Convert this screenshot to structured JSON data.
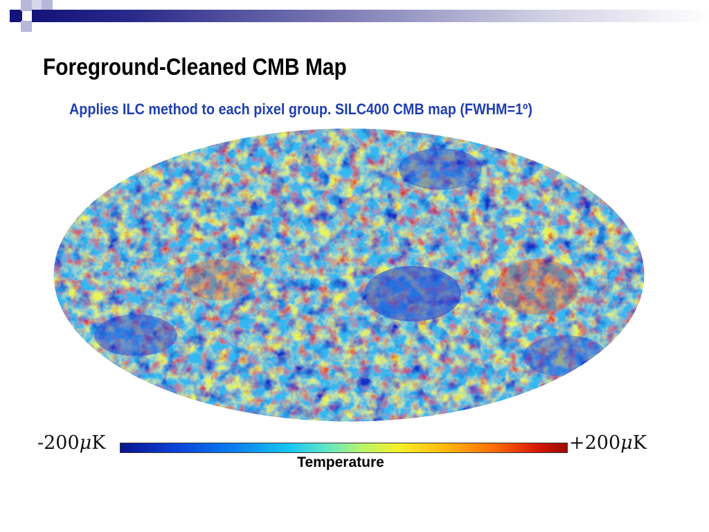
{
  "slide": {
    "title": "Foreground-Cleaned CMB Map",
    "subtitle": "Applies ILC method to each pixel group. SILC400 CMB map (FWHM=1º)"
  },
  "colorbar": {
    "min_label": "-200",
    "max_label": "+200",
    "unit_mu": "μ",
    "unit_k": "K",
    "caption": "Temperature",
    "min_value": -200,
    "max_value": 200,
    "colormap": "jet"
  },
  "colors": {
    "title": "#000000",
    "subtitle": "#1f3fb0",
    "header_dark": "#13137a",
    "header_light": "#a8a8d4"
  }
}
